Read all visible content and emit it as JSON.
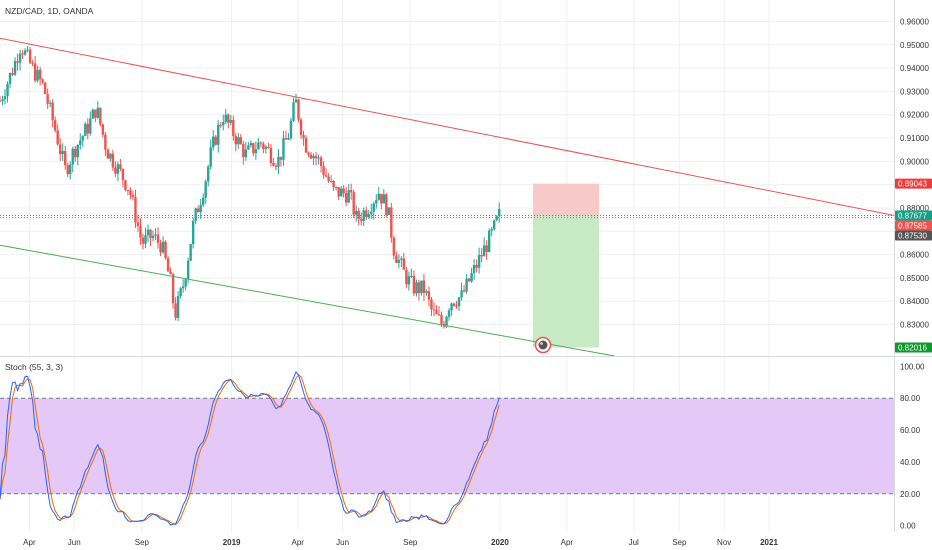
{
  "symbol_header": "NZD/CAD, 1D, OANDA",
  "indicator_header": "Stoch (55, 3, 3)",
  "colors": {
    "up": "#26a69a",
    "down": "#ef5350",
    "resistance": "#f05350",
    "support": "#4caf50",
    "stop_zone": "#f8c9c9",
    "target_zone": "#c7e9c3",
    "stoch_band": "#e3c8f8",
    "stoch_k": "#2962ff",
    "stoch_d": "#ef6c00",
    "grid": "#eef0f3",
    "stop_badge": "#ef3b3b",
    "target_badge": "#10982f",
    "entry_badge": "#16a085",
    "last_badge": "#555555"
  },
  "chart_data": {
    "type": "candlestick",
    "price_axis": {
      "ylim": [
        0.8165,
        0.9675
      ],
      "ticks": [
        "0.96000",
        "0.95000",
        "0.94000",
        "0.93000",
        "0.92000",
        "0.91000",
        "0.90000",
        "0.89000",
        "0.88000",
        "0.87000",
        "0.86000",
        "0.85000",
        "0.84000",
        "0.83000"
      ]
    },
    "time_axis": {
      "range": [
        "2018-02-20",
        "2021-06-20"
      ],
      "labels": [
        {
          "date": "2018-04-01",
          "text": "Apr",
          "bold": false
        },
        {
          "date": "2018-06-01",
          "text": "Jun",
          "bold": false
        },
        {
          "date": "2018-09-01",
          "text": "Sep",
          "bold": false
        },
        {
          "date": "2019-01-01",
          "text": "2019",
          "bold": true
        },
        {
          "date": "2019-04-01",
          "text": "Apr",
          "bold": false
        },
        {
          "date": "2019-06-01",
          "text": "Jun",
          "bold": false
        },
        {
          "date": "2019-09-01",
          "text": "Sep",
          "bold": false
        },
        {
          "date": "2020-01-01",
          "text": "2020",
          "bold": true
        },
        {
          "date": "2020-04-01",
          "text": "Apr",
          "bold": false
        },
        {
          "date": "2020-07-01",
          "text": "Jul",
          "bold": false
        },
        {
          "date": "2020-09-01",
          "text": "Sep",
          "bold": false
        },
        {
          "date": "2020-11-01",
          "text": "Nov",
          "bold": false
        },
        {
          "date": "2021-01-01",
          "text": "2021",
          "bold": true
        }
      ]
    },
    "price_path": [
      [
        "2018-02-20",
        0.926
      ],
      [
        "2018-03-10",
        0.94
      ],
      [
        "2018-03-20",
        0.95
      ],
      [
        "2018-04-05",
        0.94
      ],
      [
        "2018-04-20",
        0.932
      ],
      [
        "2018-05-05",
        0.915
      ],
      [
        "2018-05-20",
        0.896
      ],
      [
        "2018-06-01",
        0.905
      ],
      [
        "2018-06-20",
        0.915
      ],
      [
        "2018-07-01",
        0.923
      ],
      [
        "2018-07-15",
        0.905
      ],
      [
        "2018-08-01",
        0.896
      ],
      [
        "2018-08-15",
        0.888
      ],
      [
        "2018-09-01",
        0.865
      ],
      [
        "2018-09-15",
        0.868
      ],
      [
        "2018-09-28",
        0.864
      ],
      [
        "2018-10-10",
        0.848
      ],
      [
        "2018-10-16",
        0.834
      ],
      [
        "2018-10-28",
        0.848
      ],
      [
        "2018-11-10",
        0.873
      ],
      [
        "2018-11-25",
        0.89
      ],
      [
        "2018-12-05",
        0.905
      ],
      [
        "2018-12-20",
        0.92
      ],
      [
        "2018-12-31",
        0.914
      ],
      [
        "2019-01-20",
        0.903
      ],
      [
        "2019-02-10",
        0.908
      ],
      [
        "2019-03-05",
        0.9
      ],
      [
        "2019-03-20",
        0.912
      ],
      [
        "2019-03-29",
        0.926
      ],
      [
        "2019-04-10",
        0.908
      ],
      [
        "2019-04-30",
        0.9
      ],
      [
        "2019-05-20",
        0.887
      ],
      [
        "2019-06-10",
        0.886
      ],
      [
        "2019-06-20",
        0.875
      ],
      [
        "2019-07-05",
        0.88
      ],
      [
        "2019-07-20",
        0.887
      ],
      [
        "2019-08-01",
        0.88
      ],
      [
        "2019-08-10",
        0.862
      ],
      [
        "2019-08-25",
        0.851
      ],
      [
        "2019-09-05",
        0.846
      ],
      [
        "2019-09-20",
        0.845
      ],
      [
        "2019-10-01",
        0.835
      ],
      [
        "2019-10-15",
        0.83
      ],
      [
        "2019-10-25",
        0.84
      ],
      [
        "2019-11-10",
        0.842
      ],
      [
        "2019-11-25",
        0.852
      ],
      [
        "2019-12-10",
        0.862
      ],
      [
        "2019-12-20",
        0.868
      ],
      [
        "2019-12-31",
        0.8768
      ]
    ],
    "candle_count": 200,
    "resistance_line": {
      "from": [
        "2018-02-20",
        0.9528
      ],
      "to": [
        "2021-06-20",
        0.8768
      ]
    },
    "support_line": {
      "from": [
        "2018-02-20",
        0.864
      ],
      "to": [
        "2020-06-05",
        0.8165
      ]
    },
    "position": {
      "start": "2020-02-15",
      "end": "2020-05-15",
      "stop": 0.89043,
      "entry": 0.87677,
      "target": 0.82016
    },
    "price_labels": [
      {
        "text": "0.89043",
        "value": 0.89043,
        "role": "stop"
      },
      {
        "text": "0.87677",
        "value": 0.87677,
        "role": "entry"
      },
      {
        "text": "0.87585",
        "value": 0.87585,
        "role": "target"
      },
      {
        "text": "0.87530",
        "value": 0.8753,
        "role": "last"
      },
      {
        "text": "0.82016",
        "value": 0.82016,
        "role": "target"
      }
    ],
    "stochastic": {
      "params": [
        55,
        3,
        3
      ],
      "ylim": [
        -4,
        104
      ],
      "ticks": [
        "100.00",
        "80.00",
        "60.00",
        "40.00",
        "20.00",
        "0.00"
      ],
      "band": [
        20,
        80
      ]
    }
  }
}
